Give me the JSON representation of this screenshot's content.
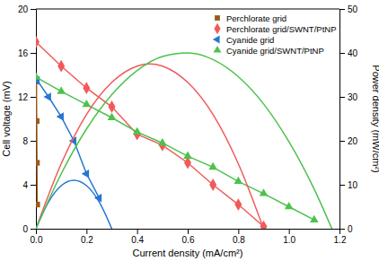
{
  "chart_data": {
    "type": "line",
    "xlabel": "Current density (mA/cm²)",
    "ylabel": "Cell voltage (mV)",
    "y2label": "Power density (mW/cm²)",
    "xlim": [
      0,
      1.2
    ],
    "xticks": [
      {
        "value": 0,
        "label": "0.0"
      },
      0.2,
      0.4,
      0.6,
      0.8,
      {
        "value": 1,
        "label": "1.0"
      },
      1.2
    ],
    "ylim": [
      0,
      20
    ],
    "yticks": [
      0,
      4,
      8,
      12,
      16,
      20
    ],
    "y2lim": [
      0,
      50
    ],
    "y2ticks": [
      0,
      10,
      20,
      30,
      40,
      50
    ],
    "legend": "upper right",
    "series": [
      {
        "name": "Perchlorate grid",
        "color": "#9b5a1a",
        "marker": "square",
        "line_style": "solid",
        "x": [
          0.002,
          0.003,
          0.004,
          0.005
        ],
        "values": [
          13.4,
          9.8,
          6.0,
          2.2
        ]
      },
      {
        "name": "Perchlorate grid/SWNT/PtNP",
        "color": "#f05a5a",
        "marker": "diamond",
        "line_style": "solid",
        "x": [
          0,
          0.1,
          0.2,
          0.3,
          0.4,
          0.5,
          0.6,
          0.7,
          0.8,
          0.9
        ],
        "values": [
          17.0,
          14.8,
          12.8,
          11.1,
          8.6,
          7.6,
          6.0,
          4.0,
          2.2,
          0.2
        ]
      },
      {
        "name": "Cyanide grid",
        "color": "#2676d1",
        "marker": "triangle-left",
        "line_style": "solid",
        "x": [
          0.005,
          0.05,
          0.1,
          0.15,
          0.2,
          0.25
        ],
        "values": [
          13.5,
          12.0,
          10.2,
          8.0,
          5.0,
          2.8
        ]
      },
      {
        "name": "Cyanide grid/SWNT/PtNP",
        "color": "#4cc24c",
        "marker": "triangle-up",
        "line_style": "solid",
        "x": [
          0,
          0.1,
          0.2,
          0.3,
          0.4,
          0.5,
          0.6,
          0.7,
          0.8,
          0.9,
          1.0,
          1.1
        ],
        "values": [
          13.8,
          12.5,
          11.3,
          10.1,
          8.8,
          7.8,
          6.6,
          5.6,
          4.3,
          3.2,
          2.0,
          0.8
        ]
      },
      {
        "color": "#f05a5a",
        "axis": "y2",
        "marker": "none",
        "line_style": "solid",
        "x": [
          0,
          0.1,
          0.2,
          0.3,
          0.4,
          0.45,
          0.5,
          0.6,
          0.7,
          0.8,
          0.9
        ],
        "values": [
          0,
          14.8,
          26.0,
          33.3,
          37.0,
          37.5,
          37.0,
          33.3,
          26.0,
          14.8,
          0
        ]
      },
      {
        "color": "#2676d1",
        "axis": "y2",
        "marker": "none",
        "line_style": "solid",
        "x": [
          0,
          0.05,
          0.1,
          0.15,
          0.2,
          0.25,
          0.3
        ],
        "values": [
          0,
          6.1,
          9.8,
          11.0,
          9.8,
          6.1,
          0
        ]
      },
      {
        "color": "#4cc24c",
        "axis": "y2",
        "marker": "none",
        "line_style": "solid",
        "x": [
          0,
          0.1,
          0.2,
          0.3,
          0.4,
          0.5,
          0.6,
          0.7,
          0.8,
          0.9,
          1.0,
          1.1,
          1.17
        ],
        "values": [
          0,
          12.5,
          22.7,
          30.5,
          36.0,
          39.2,
          40.0,
          38.5,
          34.6,
          28.4,
          19.8,
          9.0,
          0
        ]
      }
    ]
  }
}
